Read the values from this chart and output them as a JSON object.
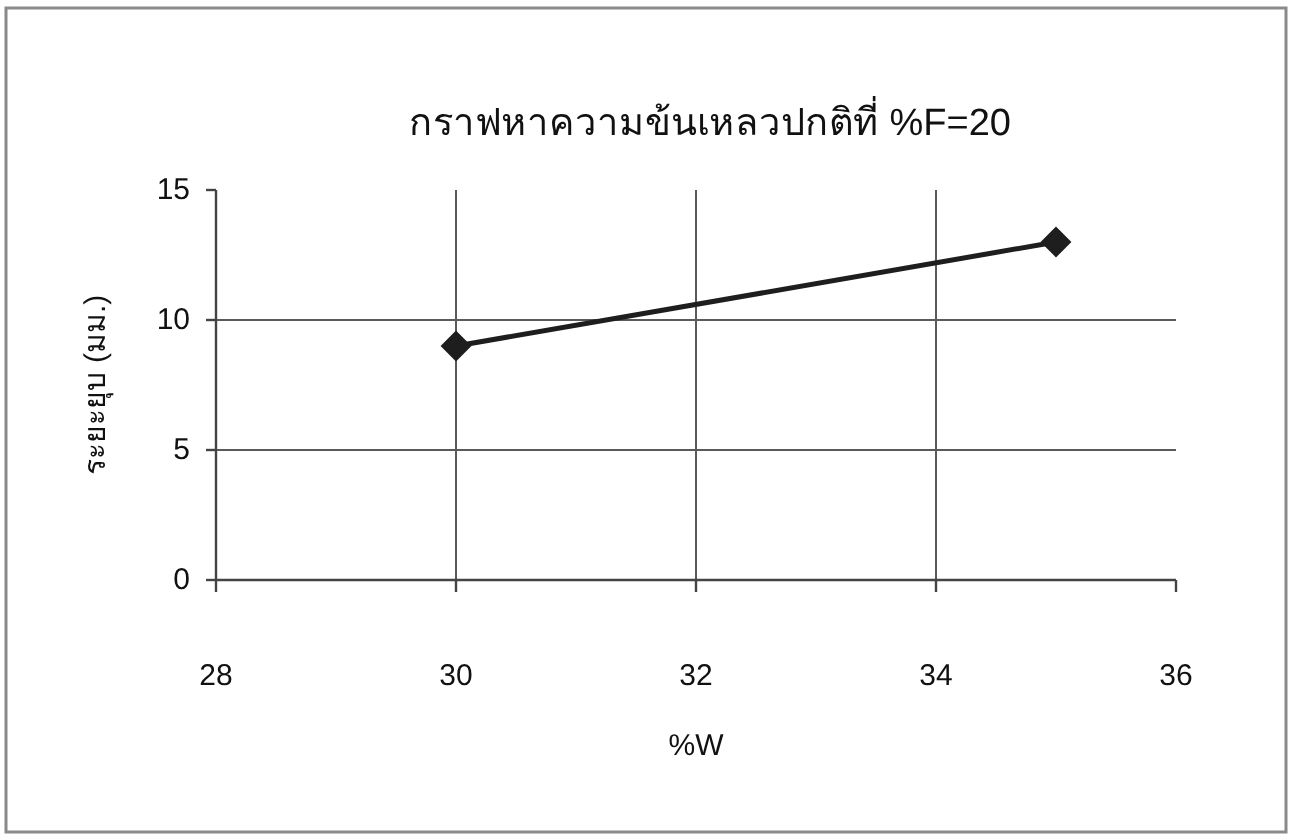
{
  "chart_data": {
    "type": "line",
    "title": "กราฟหาความข้นเหลวปกติที่ %F=20",
    "xlabel": "%W",
    "ylabel": "ระยะยุบ (มม.)",
    "x": [
      30,
      35
    ],
    "series": [
      {
        "color": "#1e1e1e",
        "values": [
          9,
          13
        ]
      }
    ],
    "xlim": [
      28,
      36
    ],
    "xticks": [
      28,
      30,
      32,
      34,
      36
    ],
    "ylim": [
      0,
      15
    ],
    "yticks": [
      0,
      5,
      10,
      15
    ],
    "grid": true,
    "marker": "diamond",
    "line_style": "solid"
  }
}
